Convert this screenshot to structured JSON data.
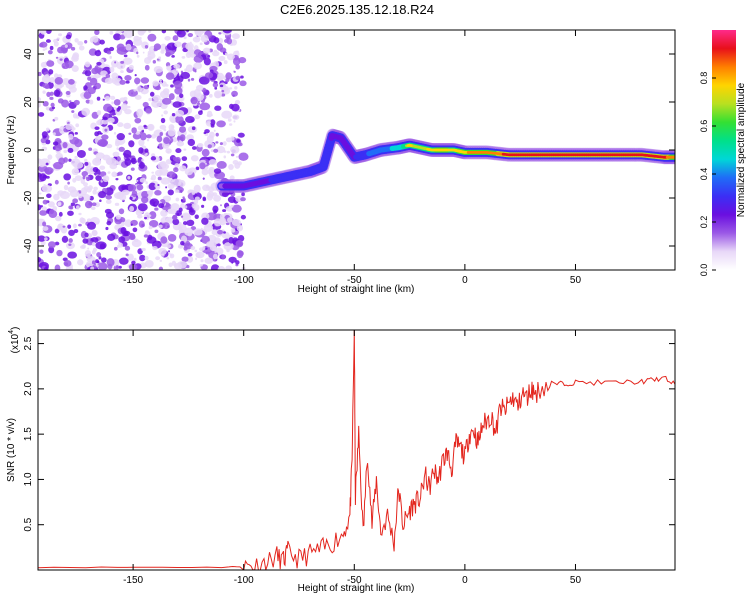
{
  "figure_title": "C2E6.2025.135.12.18.R24",
  "colors": {
    "snr_line": "#e3261e",
    "colormap": [
      "#ffffff",
      "#e8d8f8",
      "#9b59e6",
      "#6a0fe0",
      "#3b2ff5",
      "#1f6cf7",
      "#00d7d7",
      "#00e08a",
      "#33e033",
      "#b8e020",
      "#ffd400",
      "#ff7f00",
      "#e8101a",
      "#ff2a8a"
    ]
  },
  "chart_data": [
    {
      "type": "heatmap",
      "title": "",
      "xlabel": "Height of straight line (km)",
      "ylabel": "Frequency (Hz)",
      "xlim": [
        -193,
        95
      ],
      "ylim": [
        -50,
        50
      ],
      "xticks": [
        -150,
        -100,
        -50,
        0,
        50
      ],
      "xtick_labels": [
        "-150",
        "-100",
        "-50",
        "0",
        "50"
      ],
      "yticks": [
        -40,
        -20,
        0,
        20,
        40
      ],
      "ytick_labels": [
        "-40",
        "-20",
        "0",
        "20",
        "40"
      ],
      "colorbar": {
        "label": "Normalized spectral amplitude",
        "range": [
          0,
          1
        ],
        "ticks": [
          0,
          0.2,
          0.4,
          0.6,
          0.8
        ],
        "tick_labels": [
          "0.0",
          "0.2",
          "0.4",
          "0.6",
          "0.8"
        ]
      },
      "noise_region": {
        "x": [
          -193,
          -100
        ],
        "y": [
          -50,
          50
        ],
        "amplitude": 0.15
      },
      "ridge": {
        "x": [
          -110,
          -100,
          -90,
          -80,
          -70,
          -64,
          -60,
          -56,
          -50,
          -45,
          -38,
          -30,
          -25,
          -20,
          -15,
          -10,
          -5,
          0,
          10,
          20,
          30,
          40,
          50,
          60,
          70,
          80,
          90,
          95
        ],
        "y": [
          -15,
          -15,
          -13,
          -11,
          -9,
          -7,
          6,
          5,
          -3,
          -2,
          0,
          1,
          2,
          1,
          0,
          0,
          0,
          -1,
          -1,
          -2,
          -2,
          -2,
          -2,
          -2,
          -2,
          -2,
          -3,
          -3
        ],
        "amplitude": [
          0.25,
          0.3,
          0.35,
          0.4,
          0.4,
          0.45,
          0.35,
          0.3,
          0.35,
          0.45,
          0.5,
          0.6,
          0.75,
          0.7,
          0.75,
          0.8,
          0.75,
          0.8,
          0.85,
          0.9,
          0.9,
          0.92,
          0.95,
          0.95,
          0.95,
          0.95,
          0.9,
          0.85
        ]
      }
    },
    {
      "type": "line",
      "title": "",
      "xlabel": "Height of straight line (km)",
      "ylabel": "SNR (10 * v/v)",
      "y_multiplier_label": "(x10",
      "y_multiplier_exp": "4",
      "y_multiplier_close": ")",
      "xlim": [
        -193,
        95
      ],
      "ylim": [
        0,
        2.65
      ],
      "xticks": [
        -150,
        -100,
        -50,
        0,
        50
      ],
      "xtick_labels": [
        "-150",
        "-100",
        "-50",
        "0",
        "50"
      ],
      "yticks": [
        0.5,
        1.0,
        1.5,
        2.0,
        2.5
      ],
      "ytick_labels": [
        "0.5",
        "1.0",
        "1.5",
        "2.0",
        "2.5"
      ],
      "series": [
        {
          "x": [
            -193,
            -150,
            -110,
            -100,
            -95,
            -90,
            -85,
            -82,
            -80,
            -75,
            -70,
            -65,
            -60,
            -55,
            -52,
            -51,
            -50,
            -49.5,
            -48,
            -46,
            -44,
            -42,
            -40,
            -38,
            -35,
            -32,
            -30,
            -28,
            -26,
            -24,
            -22,
            -20,
            -18,
            -16,
            -14,
            -12,
            -10,
            -8,
            -6,
            -4,
            -2,
            0,
            2,
            4,
            6,
            8,
            10,
            12,
            14,
            16,
            18,
            20,
            22,
            24,
            26,
            28,
            30,
            32,
            35,
            40,
            45,
            50,
            60,
            70,
            80,
            85,
            90,
            95
          ],
          "y": [
            0.03,
            0.03,
            0.03,
            0.04,
            0.05,
            0.08,
            0.15,
            0.1,
            0.2,
            0.12,
            0.18,
            0.22,
            0.3,
            0.4,
            0.6,
            1.2,
            2.65,
            0.8,
            1.5,
            0.4,
            1.3,
            0.5,
            1.0,
            0.4,
            0.6,
            0.3,
            0.9,
            0.5,
            0.6,
            0.7,
            0.75,
            0.8,
            1.05,
            0.9,
            1.1,
            1.0,
            1.2,
            1.3,
            1.1,
            1.4,
            1.35,
            1.25,
            1.5,
            1.55,
            1.4,
            1.6,
            1.65,
            1.7,
            1.5,
            1.8,
            1.75,
            1.85,
            1.9,
            1.8,
            1.95,
            1.9,
            2.0,
            1.95,
            2.02,
            2.05,
            2.06,
            2.07,
            2.07,
            2.07,
            2.08,
            2.1,
            2.12,
            2.05
          ]
        }
      ]
    }
  ]
}
